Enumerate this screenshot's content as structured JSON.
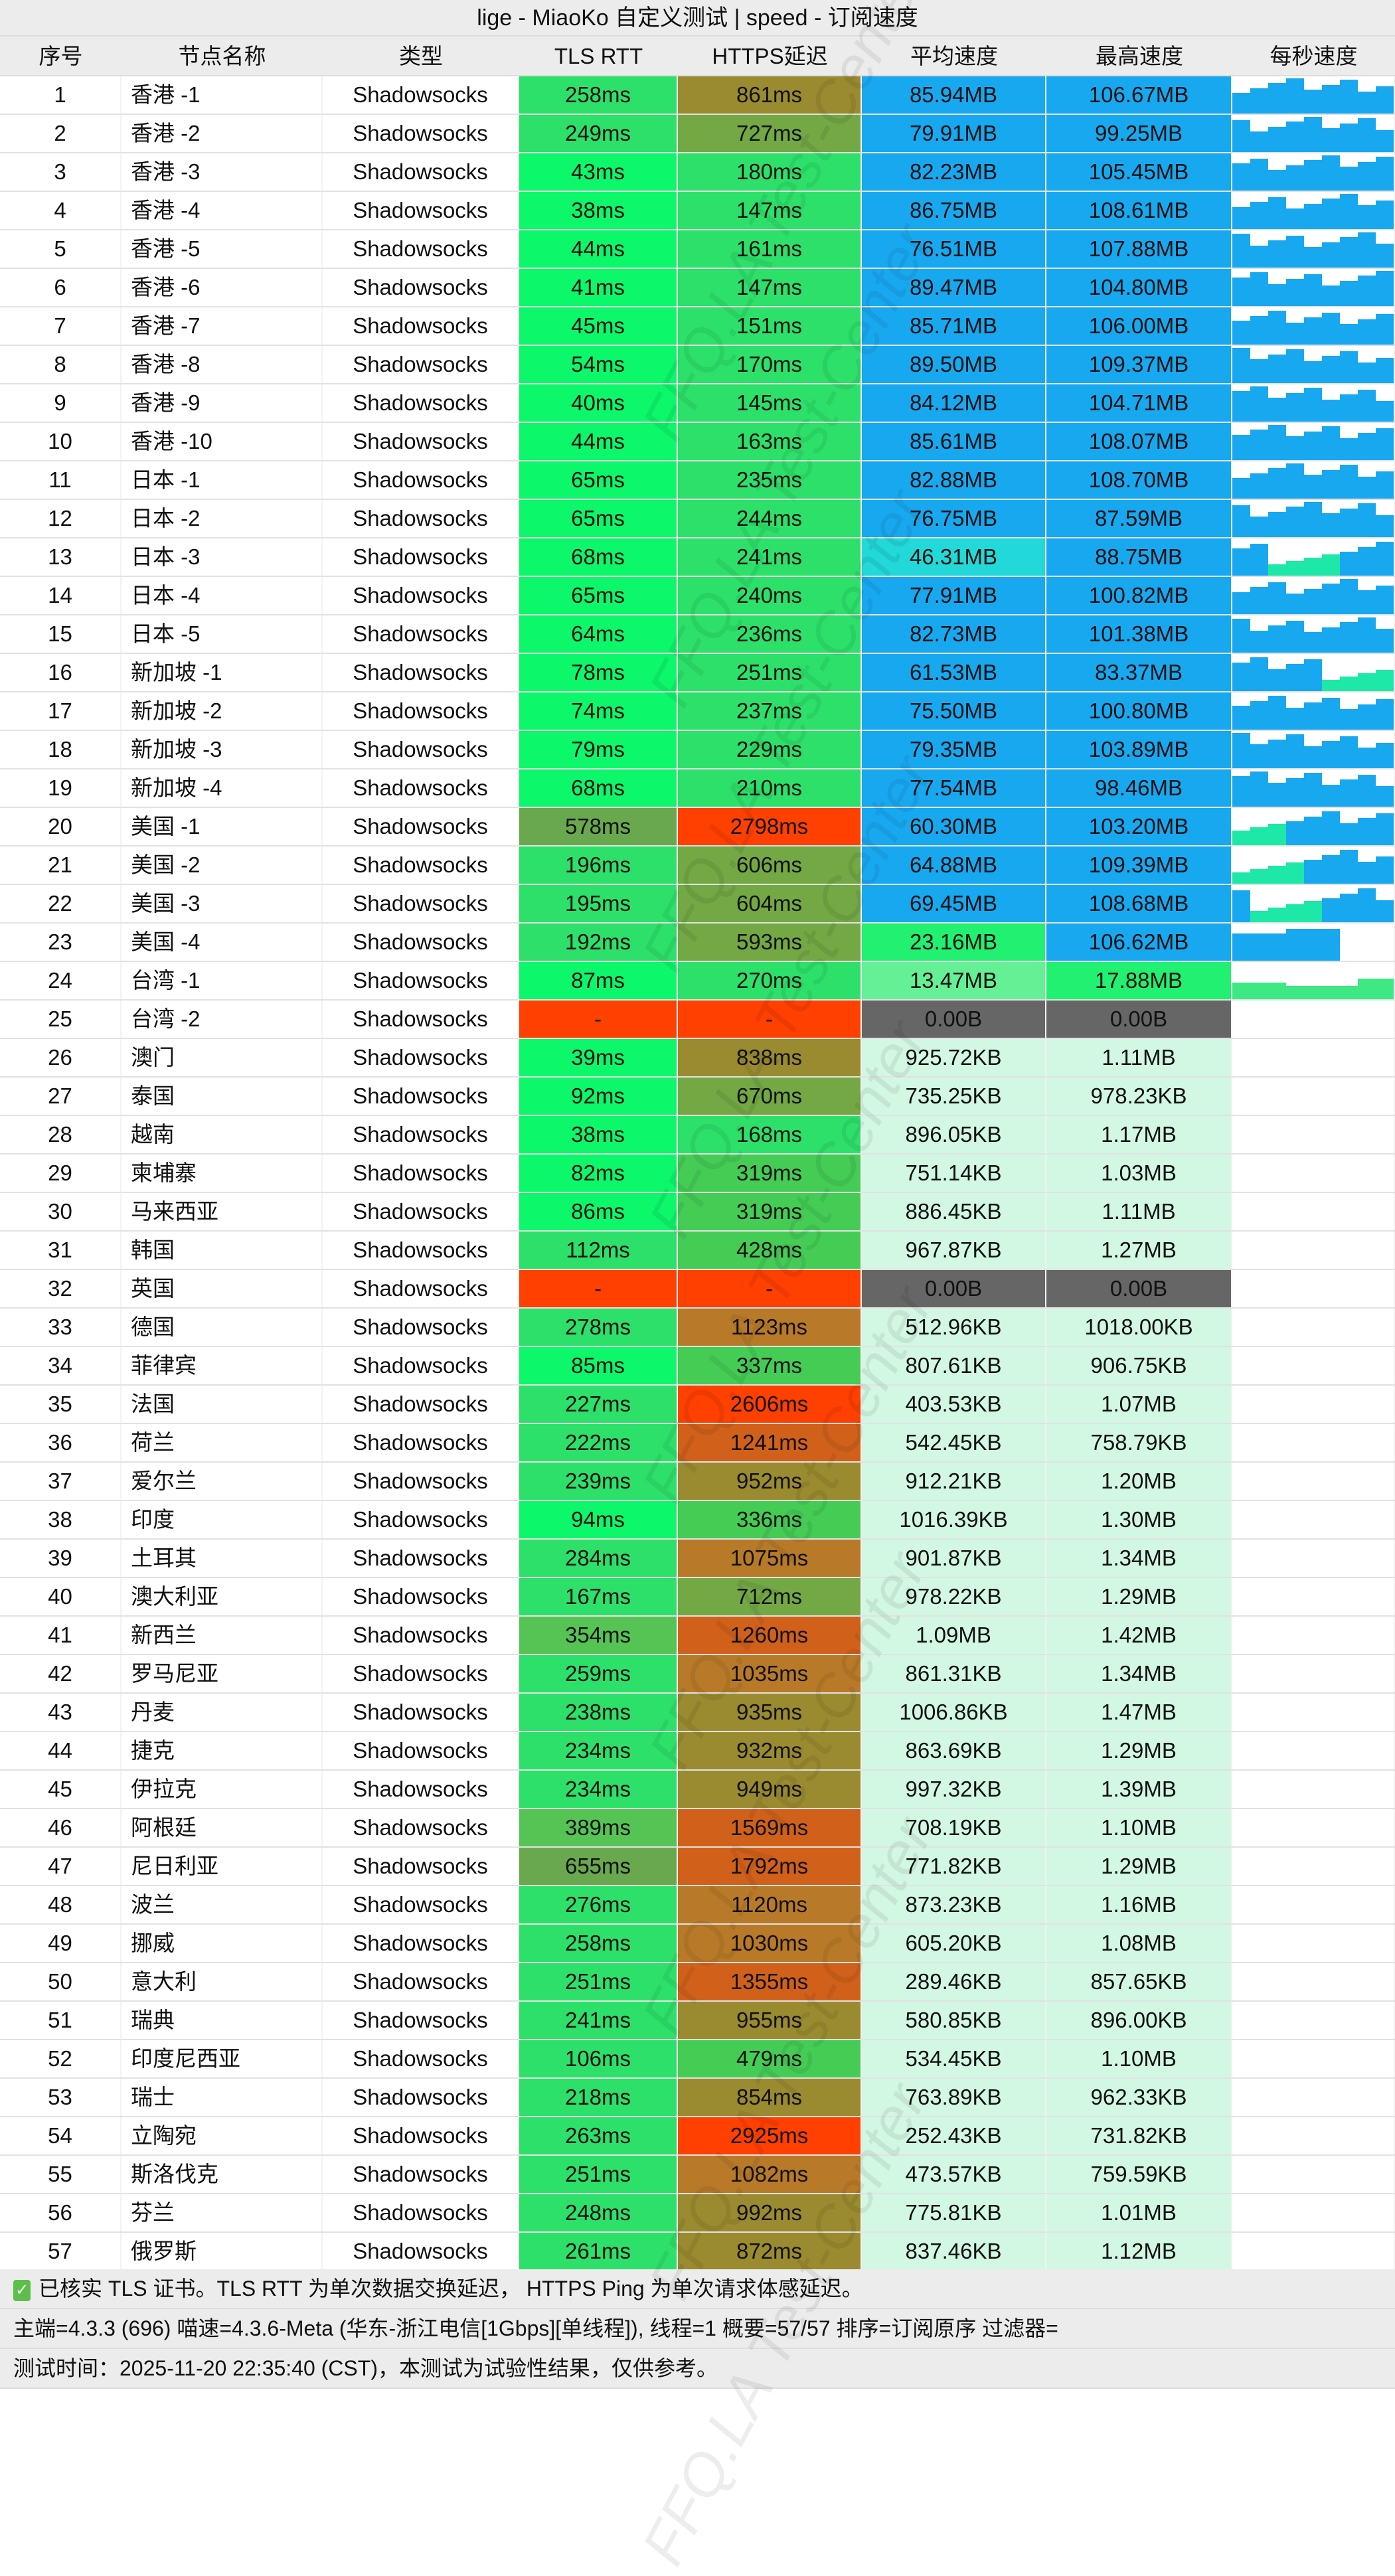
{
  "title": "lige - MiaoKo 自定义测试 | speed - 订阅速度",
  "headers": [
    "序号",
    "节点名称",
    "类型",
    "TLS RTT",
    "HTTPS延迟",
    "平均速度",
    "最高速度",
    "每秒速度"
  ],
  "rows": [
    [
      "1",
      "香港 -1",
      "Shadowsocks",
      "258ms",
      "861ms",
      "85.94MB",
      "106.67MB"
    ],
    [
      "2",
      "香港 -2",
      "Shadowsocks",
      "249ms",
      "727ms",
      "79.91MB",
      "99.25MB"
    ],
    [
      "3",
      "香港 -3",
      "Shadowsocks",
      "43ms",
      "180ms",
      "82.23MB",
      "105.45MB"
    ],
    [
      "4",
      "香港 -4",
      "Shadowsocks",
      "38ms",
      "147ms",
      "86.75MB",
      "108.61MB"
    ],
    [
      "5",
      "香港 -5",
      "Shadowsocks",
      "44ms",
      "161ms",
      "76.51MB",
      "107.88MB"
    ],
    [
      "6",
      "香港 -6",
      "Shadowsocks",
      "41ms",
      "147ms",
      "89.47MB",
      "104.80MB"
    ],
    [
      "7",
      "香港 -7",
      "Shadowsocks",
      "45ms",
      "151ms",
      "85.71MB",
      "106.00MB"
    ],
    [
      "8",
      "香港 -8",
      "Shadowsocks",
      "54ms",
      "170ms",
      "89.50MB",
      "109.37MB"
    ],
    [
      "9",
      "香港 -9",
      "Shadowsocks",
      "40ms",
      "145ms",
      "84.12MB",
      "104.71MB"
    ],
    [
      "10",
      "香港 -10",
      "Shadowsocks",
      "44ms",
      "163ms",
      "85.61MB",
      "108.07MB"
    ],
    [
      "11",
      "日本 -1",
      "Shadowsocks",
      "65ms",
      "235ms",
      "82.88MB",
      "108.70MB"
    ],
    [
      "12",
      "日本 -2",
      "Shadowsocks",
      "65ms",
      "244ms",
      "76.75MB",
      "87.59MB"
    ],
    [
      "13",
      "日本 -3",
      "Shadowsocks",
      "68ms",
      "241ms",
      "46.31MB",
      "88.75MB"
    ],
    [
      "14",
      "日本 -4",
      "Shadowsocks",
      "65ms",
      "240ms",
      "77.91MB",
      "100.82MB"
    ],
    [
      "15",
      "日本 -5",
      "Shadowsocks",
      "64ms",
      "236ms",
      "82.73MB",
      "101.38MB"
    ],
    [
      "16",
      "新加坡 -1",
      "Shadowsocks",
      "78ms",
      "251ms",
      "61.53MB",
      "83.37MB"
    ],
    [
      "17",
      "新加坡 -2",
      "Shadowsocks",
      "74ms",
      "237ms",
      "75.50MB",
      "100.80MB"
    ],
    [
      "18",
      "新加坡 -3",
      "Shadowsocks",
      "79ms",
      "229ms",
      "79.35MB",
      "103.89MB"
    ],
    [
      "19",
      "新加坡 -4",
      "Shadowsocks",
      "68ms",
      "210ms",
      "77.54MB",
      "98.46MB"
    ],
    [
      "20",
      "美国 -1",
      "Shadowsocks",
      "578ms",
      "2798ms",
      "60.30MB",
      "103.20MB"
    ],
    [
      "21",
      "美国 -2",
      "Shadowsocks",
      "196ms",
      "606ms",
      "64.88MB",
      "109.39MB"
    ],
    [
      "22",
      "美国 -3",
      "Shadowsocks",
      "195ms",
      "604ms",
      "69.45MB",
      "108.68MB"
    ],
    [
      "23",
      "美国 -4",
      "Shadowsocks",
      "192ms",
      "593ms",
      "23.16MB",
      "106.62MB"
    ],
    [
      "24",
      "台湾 -1",
      "Shadowsocks",
      "87ms",
      "270ms",
      "13.47MB",
      "17.88MB"
    ],
    [
      "25",
      "台湾 -2",
      "Shadowsocks",
      "-",
      "-",
      "0.00B",
      "0.00B"
    ],
    [
      "26",
      "澳门",
      "Shadowsocks",
      "39ms",
      "838ms",
      "925.72KB",
      "1.11MB"
    ],
    [
      "27",
      "泰国",
      "Shadowsocks",
      "92ms",
      "670ms",
      "735.25KB",
      "978.23KB"
    ],
    [
      "28",
      "越南",
      "Shadowsocks",
      "38ms",
      "168ms",
      "896.05KB",
      "1.17MB"
    ],
    [
      "29",
      "柬埔寨",
      "Shadowsocks",
      "82ms",
      "319ms",
      "751.14KB",
      "1.03MB"
    ],
    [
      "30",
      "马来西亚",
      "Shadowsocks",
      "86ms",
      "319ms",
      "886.45KB",
      "1.11MB"
    ],
    [
      "31",
      "韩国",
      "Shadowsocks",
      "112ms",
      "428ms",
      "967.87KB",
      "1.27MB"
    ],
    [
      "32",
      "英国",
      "Shadowsocks",
      "-",
      "-",
      "0.00B",
      "0.00B"
    ],
    [
      "33",
      "德国",
      "Shadowsocks",
      "278ms",
      "1123ms",
      "512.96KB",
      "1018.00KB"
    ],
    [
      "34",
      "菲律宾",
      "Shadowsocks",
      "85ms",
      "337ms",
      "807.61KB",
      "906.75KB"
    ],
    [
      "35",
      "法国",
      "Shadowsocks",
      "227ms",
      "2606ms",
      "403.53KB",
      "1.07MB"
    ],
    [
      "36",
      "荷兰",
      "Shadowsocks",
      "222ms",
      "1241ms",
      "542.45KB",
      "758.79KB"
    ],
    [
      "37",
      "爱尔兰",
      "Shadowsocks",
      "239ms",
      "952ms",
      "912.21KB",
      "1.20MB"
    ],
    [
      "38",
      "印度",
      "Shadowsocks",
      "94ms",
      "336ms",
      "1016.39KB",
      "1.30MB"
    ],
    [
      "39",
      "土耳其",
      "Shadowsocks",
      "284ms",
      "1075ms",
      "901.87KB",
      "1.34MB"
    ],
    [
      "40",
      "澳大利亚",
      "Shadowsocks",
      "167ms",
      "712ms",
      "978.22KB",
      "1.29MB"
    ],
    [
      "41",
      "新西兰",
      "Shadowsocks",
      "354ms",
      "1260ms",
      "1.09MB",
      "1.42MB"
    ],
    [
      "42",
      "罗马尼亚",
      "Shadowsocks",
      "259ms",
      "1035ms",
      "861.31KB",
      "1.34MB"
    ],
    [
      "43",
      "丹麦",
      "Shadowsocks",
      "238ms",
      "935ms",
      "1006.86KB",
      "1.47MB"
    ],
    [
      "44",
      "捷克",
      "Shadowsocks",
      "234ms",
      "932ms",
      "863.69KB",
      "1.29MB"
    ],
    [
      "45",
      "伊拉克",
      "Shadowsocks",
      "234ms",
      "949ms",
      "997.32KB",
      "1.39MB"
    ],
    [
      "46",
      "阿根廷",
      "Shadowsocks",
      "389ms",
      "1569ms",
      "708.19KB",
      "1.10MB"
    ],
    [
      "47",
      "尼日利亚",
      "Shadowsocks",
      "655ms",
      "1792ms",
      "771.82KB",
      "1.29MB"
    ],
    [
      "48",
      "波兰",
      "Shadowsocks",
      "276ms",
      "1120ms",
      "873.23KB",
      "1.16MB"
    ],
    [
      "49",
      "挪威",
      "Shadowsocks",
      "258ms",
      "1030ms",
      "605.20KB",
      "1.08MB"
    ],
    [
      "50",
      "意大利",
      "Shadowsocks",
      "251ms",
      "1355ms",
      "289.46KB",
      "857.65KB"
    ],
    [
      "51",
      "瑞典",
      "Shadowsocks",
      "241ms",
      "955ms",
      "580.85KB",
      "896.00KB"
    ],
    [
      "52",
      "印度尼西亚",
      "Shadowsocks",
      "106ms",
      "479ms",
      "534.45KB",
      "1.10MB"
    ],
    [
      "53",
      "瑞士",
      "Shadowsocks",
      "218ms",
      "854ms",
      "763.89KB",
      "962.33KB"
    ],
    [
      "54",
      "立陶宛",
      "Shadowsocks",
      "263ms",
      "2925ms",
      "252.43KB",
      "731.82KB"
    ],
    [
      "55",
      "斯洛伐克",
      "Shadowsocks",
      "251ms",
      "1082ms",
      "473.57KB",
      "759.59KB"
    ],
    [
      "56",
      "芬兰",
      "Shadowsocks",
      "248ms",
      "992ms",
      "775.81KB",
      "1.01MB"
    ],
    [
      "57",
      "俄罗斯",
      "Shadowsocks",
      "261ms",
      "872ms",
      "837.46KB",
      "1.12MB"
    ]
  ],
  "footer": {
    "line1": "已核实 TLS 证书。TLS RTT 为单次数据交换延迟， HTTPS Ping 为单次请求体感延迟。",
    "line2": "主端=4.3.3 (696) 喵速=4.3.6-Meta (华东-浙江电信[1Gbps][单线程]), 线程=1 概要=57/57 排序=订阅原序 过滤器=",
    "line3": "测试时间：2025-11-20 22:35:40 (CST)，本测试为试验性结果，仅供参考。"
  },
  "watermark": "FFQ.LA Test-Center",
  "colors": {
    "header_bg": "#ececec",
    "fast_blue": "#18a8f0",
    "fail_red": "#ff4000",
    "zero_gray": "#666666",
    "slow_mint": "#d2f7e2",
    "check_green": "#5bbf4a"
  }
}
